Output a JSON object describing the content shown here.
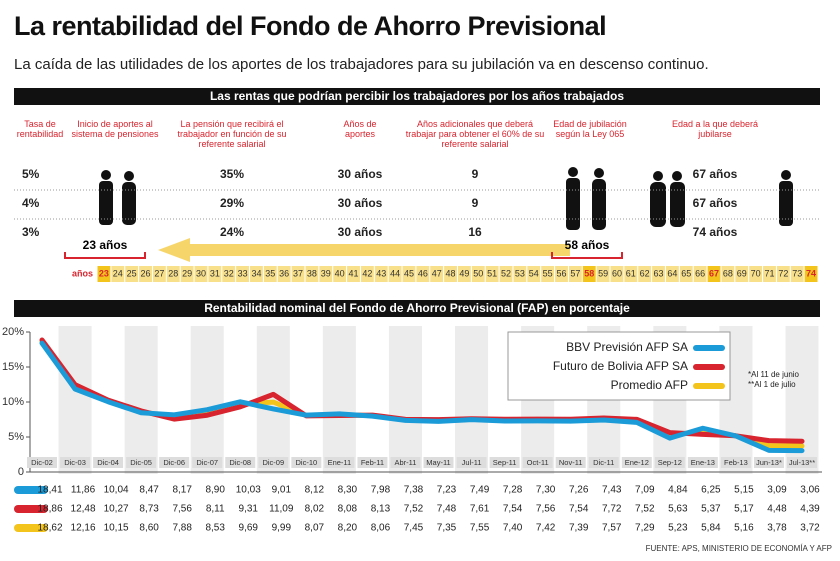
{
  "header": {
    "title": "La rentabilidad del Fondo de Ahorro Previsional",
    "subtitle": "La caída de las utilidades de los aportes de los trabajadores para su jubilación va en descenso continuo."
  },
  "table": {
    "title": "Las rentas que podrían percibir los trabajadores por los años trabajados",
    "headers": [
      "Tasa de rentabilidad",
      "Inicio de aportes al sistema de pensiones",
      "La pensión que recibirá el trabajador en función de su referente salarial",
      "Años de aportes",
      "Años adicionales que deberá trabajar para obtener el 60% de su referente salarial",
      "Edad de jubilación según la Ley 065",
      "Edad a la que deberá jubilarse"
    ],
    "rows": [
      [
        "5%",
        "35%",
        "30 años",
        "9",
        "67 años"
      ],
      [
        "4%",
        "29%",
        "30 años",
        "9",
        "67 años"
      ],
      [
        "3%",
        "24%",
        "30 años",
        "16",
        "74 años"
      ]
    ],
    "start_age_label": "23 años",
    "legal_age_label": "58 años",
    "age_axis_label": "años",
    "ages": [
      23,
      24,
      25,
      26,
      27,
      28,
      29,
      30,
      31,
      32,
      33,
      34,
      35,
      36,
      37,
      38,
      39,
      40,
      41,
      42,
      43,
      44,
      45,
      46,
      47,
      48,
      49,
      50,
      51,
      52,
      53,
      54,
      55,
      56,
      57,
      58,
      59,
      60,
      61,
      62,
      63,
      64,
      65,
      66,
      67,
      68,
      69,
      70,
      71,
      72,
      73,
      74
    ],
    "highlighted_ages": [
      23,
      58,
      67,
      74
    ]
  },
  "chart_data": {
    "type": "line",
    "title": "Rentabilidad nominal del Fondo de Ahorro Previsional (FAP) en porcentaje",
    "categories": [
      "Dic-02",
      "Dic-03",
      "Dic-04",
      "Dic-05",
      "Dic-06",
      "Dic-07",
      "Dic-08",
      "Dic-09",
      "Dic-10",
      "Ene-11",
      "Feb-11",
      "Abr-11",
      "May-11",
      "Jul-11",
      "Sep-11",
      "Oct-11",
      "Nov-11",
      "Dic-11",
      "Ene-12",
      "Sep-12",
      "Ene-13",
      "Feb-13",
      "Jun-13*",
      "Jul-13**"
    ],
    "series": [
      {
        "name": "BBV Previsión AFP SA",
        "color": "#1b9bd7",
        "values": [
          18.41,
          11.86,
          10.04,
          8.47,
          8.17,
          8.9,
          10.03,
          9.01,
          8.12,
          8.3,
          7.98,
          7.38,
          7.23,
          7.49,
          7.28,
          7.3,
          7.26,
          7.43,
          7.09,
          4.84,
          6.25,
          5.15,
          3.09,
          3.06
        ],
        "value_labels": [
          "18,41",
          "11,86",
          "10,04",
          "8,47",
          "8,17",
          "8,90",
          "10,03",
          "9,01",
          "8,12",
          "8,30",
          "7,98",
          "7,38",
          "7,23",
          "7,49",
          "7,28",
          "7,30",
          "7,26",
          "7,43",
          "7,09",
          "4,84",
          "6,25",
          "5,15",
          "3,09",
          "3,06"
        ]
      },
      {
        "name": "Futuro de Bolivia AFP SA",
        "color": "#d8242e",
        "values": [
          18.86,
          12.48,
          10.27,
          8.73,
          7.56,
          8.11,
          9.31,
          11.09,
          8.02,
          8.08,
          8.13,
          7.52,
          7.48,
          7.61,
          7.54,
          7.56,
          7.54,
          7.72,
          7.52,
          5.63,
          5.37,
          5.17,
          4.48,
          4.39
        ],
        "value_labels": [
          "18,86",
          "12,48",
          "10,27",
          "8,73",
          "7,56",
          "8,11",
          "9,31",
          "11,09",
          "8,02",
          "8,08",
          "8,13",
          "7,52",
          "7,48",
          "7,61",
          "7,54",
          "7,56",
          "7,54",
          "7,72",
          "7,52",
          "5,63",
          "5,37",
          "5,17",
          "4,48",
          "4,39"
        ]
      },
      {
        "name": "Promedio AFP",
        "color": "#f3c41c",
        "values": [
          18.62,
          12.16,
          10.15,
          8.6,
          7.88,
          8.53,
          9.69,
          9.99,
          8.07,
          8.2,
          8.06,
          7.45,
          7.35,
          7.55,
          7.4,
          7.42,
          7.39,
          7.57,
          7.29,
          5.23,
          5.84,
          5.16,
          3.78,
          3.72
        ],
        "value_labels": [
          "18,62",
          "12,16",
          "10,15",
          "8,60",
          "7,88",
          "8,53",
          "9,69",
          "9,99",
          "8,07",
          "8,20",
          "8,06",
          "7,45",
          "7,35",
          "7,55",
          "7,40",
          "7,42",
          "7,39",
          "7,57",
          "7,29",
          "5,23",
          "5,84",
          "5,16",
          "3,78",
          "3,72"
        ]
      }
    ],
    "ylim": [
      0,
      20
    ],
    "yticks": [
      0,
      {
        "value": 5,
        "label": "5%"
      },
      {
        "value": 10,
        "label": "10%"
      },
      {
        "value": 15,
        "label": "15%"
      },
      {
        "value": 20,
        "label": "20%"
      }
    ],
    "legend": "top-right",
    "notes": [
      "*Al 11 de junio",
      "**Al 1 de julio"
    ]
  },
  "source": "FUENTE: APS, MINISTERIO DE ECONOMÍA Y AFP"
}
